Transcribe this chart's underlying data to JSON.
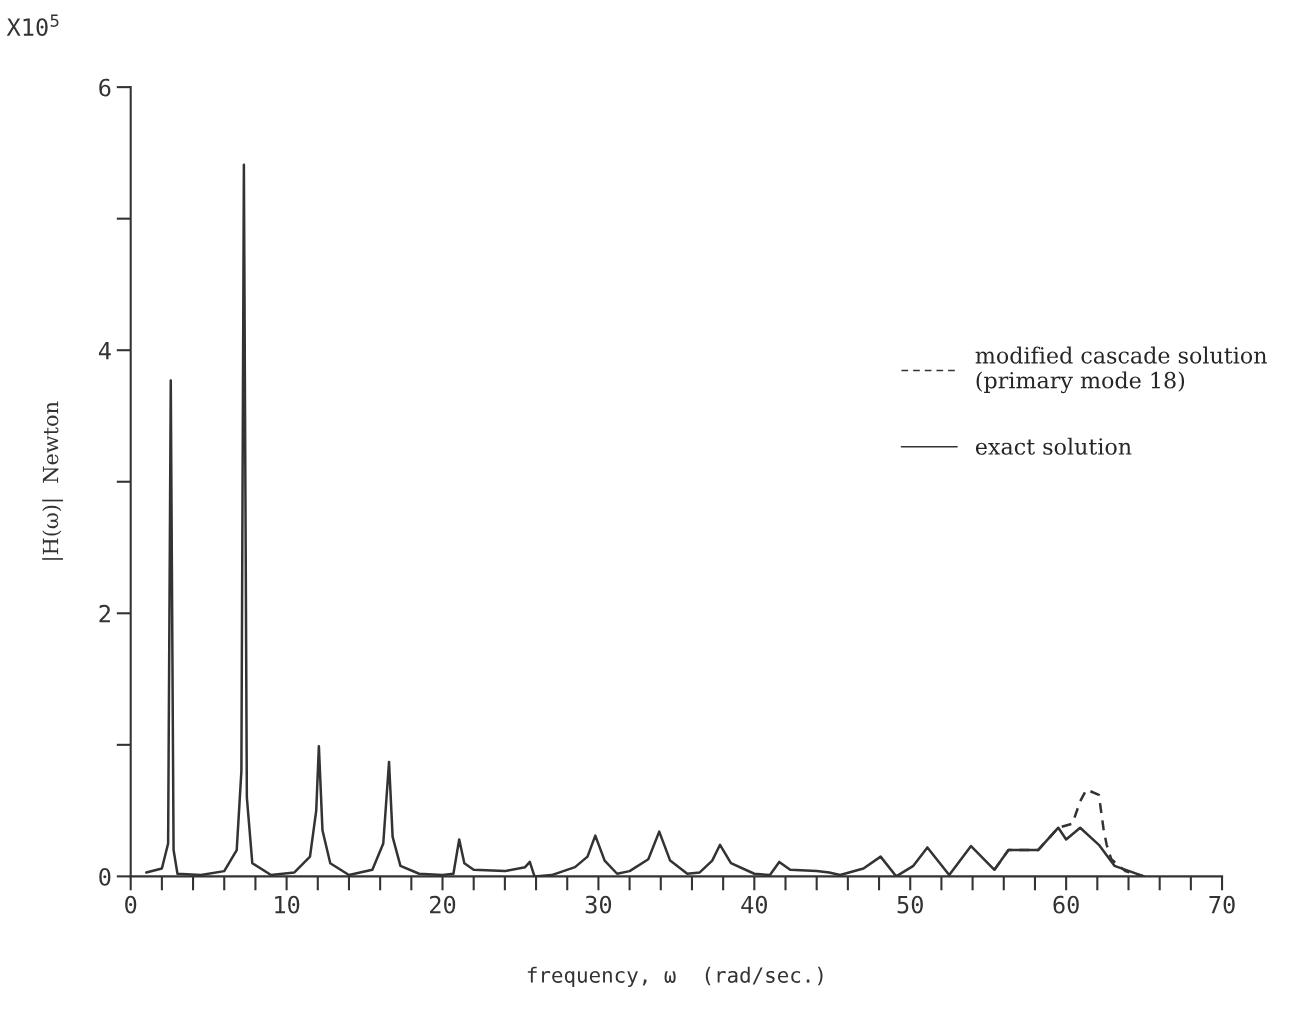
{
  "chart_data": {
    "type": "line",
    "xlabel": "frequency, ω  (rad/sec.)",
    "ylabel": "|H(ω)|  Newton",
    "annotations": [
      "X10$^{5}$"
    ],
    "xlim": [
      0,
      70
    ],
    "ylim": [
      0,
      6
    ],
    "xticks": [
      0,
      {
        "value": 2,
        "label": null
      },
      {
        "value": 4,
        "label": null
      },
      {
        "value": 6,
        "label": null
      },
      {
        "value": 8,
        "label": null
      },
      10,
      {
        "value": 12,
        "label": null
      },
      {
        "value": 14,
        "label": null
      },
      {
        "value": 16,
        "label": null
      },
      {
        "value": 18,
        "label": null
      },
      20,
      {
        "value": 22,
        "label": null
      },
      {
        "value": 24,
        "label": null
      },
      {
        "value": 26,
        "label": null
      },
      {
        "value": 28,
        "label": null
      },
      30,
      {
        "value": 32,
        "label": null
      },
      {
        "value": 34,
        "label": null
      },
      {
        "value": 36,
        "label": null
      },
      {
        "value": 38,
        "label": null
      },
      40,
      {
        "value": 42,
        "label": null
      },
      {
        "value": 44,
        "label": null
      },
      {
        "value": 46,
        "label": null
      },
      {
        "value": 48,
        "label": null
      },
      50,
      {
        "value": 52,
        "label": null
      },
      {
        "value": 54,
        "label": null
      },
      {
        "value": 56,
        "label": null
      },
      {
        "value": 58,
        "label": null
      },
      60,
      {
        "value": 62,
        "label": null
      },
      {
        "value": 64,
        "label": null
      },
      {
        "value": 66,
        "label": null
      },
      {
        "value": 68,
        "label": null
      },
      70
    ],
    "yticks": [
      0,
      {
        "value": 1,
        "label": null
      },
      2,
      {
        "value": 3,
        "label": null
      },
      4,
      {
        "value": 5,
        "label": null
      },
      6
    ],
    "grid": false,
    "legend": "right",
    "marker": "none",
    "series": [
      {
        "name": "modified cascade solution\n(primary mode 18)",
        "color": "#333333",
        "line_style": "dashed",
        "x": [
          55.4,
          56.3,
          58.2,
          59.5,
          60.4,
          60.9,
          61.3,
          62.1,
          62.4,
          62.6,
          62.9,
          63.8,
          65.0
        ],
        "values": [
          0.05,
          0.2,
          0.2,
          0.37,
          0.4,
          0.57,
          0.66,
          0.62,
          0.36,
          0.24,
          0.13,
          0.04,
          0.0
        ]
      },
      {
        "name": "exact solution",
        "color": "#333333",
        "line_style": "solid",
        "x": [
          1.0,
          2.0,
          2.4,
          2.57,
          2.75,
          3.0,
          4.5,
          6.0,
          6.8,
          7.1,
          7.26,
          7.45,
          7.8,
          9,
          10.5,
          11.5,
          11.9,
          12.07,
          12.3,
          12.8,
          14,
          15.5,
          16.2,
          16.57,
          16.8,
          17.3,
          18.5,
          20,
          20.7,
          21.07,
          21.4,
          22,
          24,
          25.3,
          25.6,
          25.9,
          27,
          28.5,
          29.3,
          29.8,
          30.4,
          31.2,
          32,
          33.2,
          33.9,
          34.6,
          35.7,
          36.5,
          37.3,
          37.8,
          38.5,
          40,
          41,
          41.6,
          42.3,
          44,
          44.8,
          45.5,
          47,
          48.1,
          49.1,
          50.2,
          51.1,
          52.5,
          53.9,
          55.4,
          56.3,
          58.2,
          59.5,
          60.0,
          60.9,
          62.1,
          63.1,
          65.0
        ],
        "values": [
          0.03,
          0.06,
          0.25,
          3.77,
          0.2,
          0.02,
          0.01,
          0.04,
          0.2,
          0.8,
          5.41,
          0.6,
          0.1,
          0.01,
          0.03,
          0.15,
          0.5,
          0.99,
          0.35,
          0.1,
          0.01,
          0.05,
          0.25,
          0.87,
          0.3,
          0.08,
          0.02,
          0.01,
          0.02,
          0.28,
          0.1,
          0.05,
          0.04,
          0.07,
          0.11,
          0.0,
          0.01,
          0.07,
          0.15,
          0.31,
          0.12,
          0.02,
          0.04,
          0.13,
          0.34,
          0.12,
          0.02,
          0.03,
          0.12,
          0.24,
          0.1,
          0.02,
          0.01,
          0.11,
          0.05,
          0.04,
          0.03,
          0.01,
          0.06,
          0.15,
          0.0,
          0.08,
          0.22,
          0.01,
          0.23,
          0.05,
          0.2,
          0.2,
          0.37,
          0.28,
          0.37,
          0.24,
          0.08,
          0.0
        ]
      }
    ]
  }
}
